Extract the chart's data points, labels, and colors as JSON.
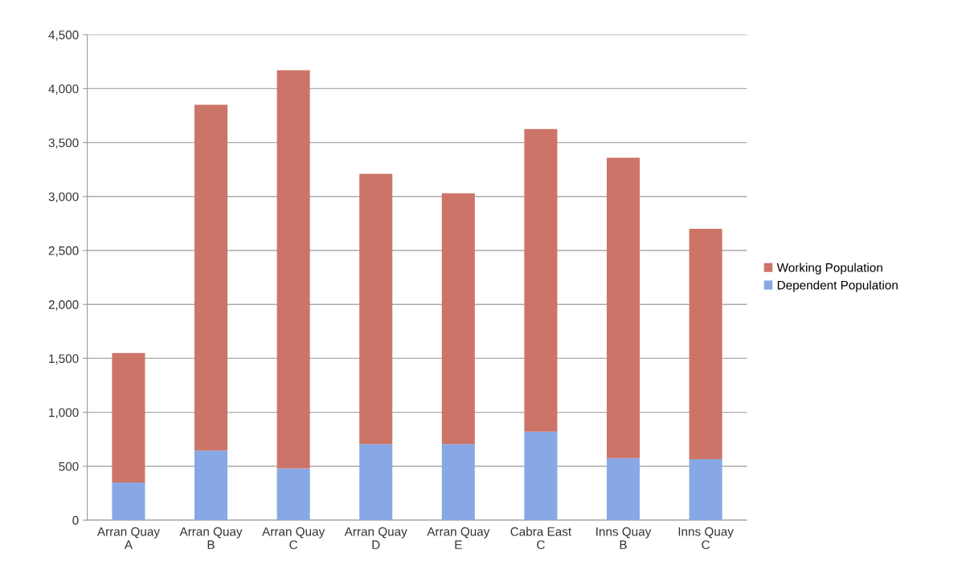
{
  "chart_data": {
    "type": "bar",
    "stacked": true,
    "categories": [
      "Arran Quay\nA",
      "Arran Quay\nB",
      "Arran Quay\nC",
      "Arran Quay\nD",
      "Arran Quay\nE",
      "Cabra East\nC",
      "Inns Quay\nB",
      "Inns Quay\nC"
    ],
    "series": [
      {
        "name": "Dependent Population",
        "color": "#87a8e4",
        "values": [
          350,
          645,
          480,
          705,
          705,
          820,
          575,
          565
        ]
      },
      {
        "name": "Working Population",
        "color": "#cc7468",
        "values": [
          1200,
          3205,
          3690,
          2505,
          2325,
          2805,
          2785,
          2135
        ]
      }
    ],
    "ylim": [
      0,
      4500
    ],
    "yticks": [
      0,
      500,
      {
        "value": 1000,
        "label": "1,000"
      },
      {
        "value": 1500,
        "label": "1,500"
      },
      {
        "value": 2000,
        "label": "2,000"
      },
      {
        "value": 2500,
        "label": "2,500"
      },
      {
        "value": 3000,
        "label": "3,000"
      },
      {
        "value": 3500,
        "label": "3,500"
      },
      {
        "value": 4000,
        "label": "4,000"
      },
      {
        "value": 4500,
        "label": "4,500"
      }
    ],
    "grid": "y",
    "legend": "right"
  }
}
